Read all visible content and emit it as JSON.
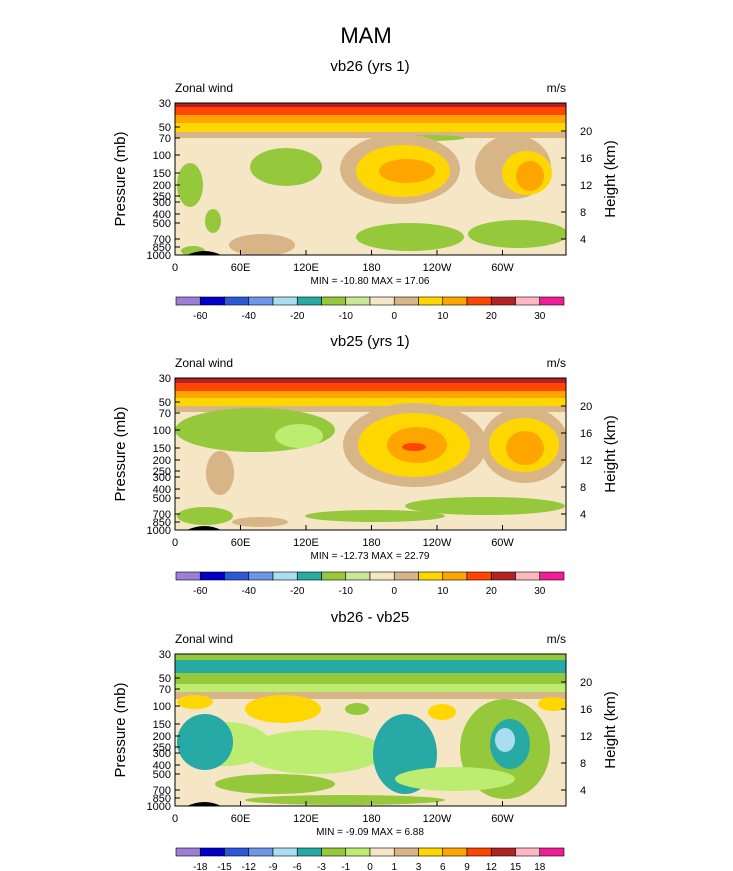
{
  "figure": {
    "title": "MAM"
  },
  "chart_data": [
    {
      "type": "heatmap",
      "title": "vb26 (yrs 1)",
      "variable": "Zonal wind",
      "units": "m/s",
      "xlabel": "",
      "ylabel": "Pressure (mb)",
      "y2label": "Height (km)",
      "x_ticks": [
        "0",
        "60E",
        "120E",
        "180",
        "120W",
        "60W"
      ],
      "y_ticks": [
        "30",
        "50",
        "70",
        "100",
        "150",
        "200",
        "250",
        "300",
        "400",
        "500",
        "700",
        "850",
        "1000"
      ],
      "y2_ticks": [
        "20",
        "16",
        "12",
        "8",
        "4"
      ],
      "stats": "MIN = -10.80  MAX =  17.06",
      "min": -10.8,
      "max": 17.06,
      "colorbar_labels": [
        "-60",
        "-40",
        "-20",
        "-10",
        "0",
        "10",
        "20",
        "30"
      ]
    },
    {
      "type": "heatmap",
      "title": "vb25 (yrs 1)",
      "variable": "Zonal wind",
      "units": "m/s",
      "xlabel": "",
      "ylabel": "Pressure (mb)",
      "y2label": "Height (km)",
      "x_ticks": [
        "0",
        "60E",
        "120E",
        "180",
        "120W",
        "60W"
      ],
      "y_ticks": [
        "30",
        "50",
        "70",
        "100",
        "150",
        "200",
        "250",
        "300",
        "400",
        "500",
        "700",
        "850",
        "1000"
      ],
      "y2_ticks": [
        "20",
        "16",
        "12",
        "8",
        "4"
      ],
      "stats": "MIN = -12.73  MAX =  22.79",
      "min": -12.73,
      "max": 22.79,
      "colorbar_labels": [
        "-60",
        "-40",
        "-20",
        "-10",
        "0",
        "10",
        "20",
        "30"
      ]
    },
    {
      "type": "heatmap",
      "title": "vb26 - vb25",
      "variable": "Zonal wind",
      "units": "m/s",
      "xlabel": "",
      "ylabel": "Pressure (mb)",
      "y2label": "Height (km)",
      "x_ticks": [
        "0",
        "60E",
        "120E",
        "180",
        "120W",
        "60W"
      ],
      "y_ticks": [
        "30",
        "50",
        "70",
        "100",
        "150",
        "200",
        "250",
        "300",
        "400",
        "500",
        "700",
        "850",
        "1000"
      ],
      "y2_ticks": [
        "20",
        "16",
        "12",
        "8",
        "4"
      ],
      "stats": "MIN = -9.09  MAX =  6.88",
      "min": -9.09,
      "max": 6.88,
      "colorbar_labels": [
        "-18",
        "-15",
        "-12",
        "-9",
        "-6",
        "-3",
        "-1",
        "0",
        "1",
        "3",
        "6",
        "9",
        "12",
        "15",
        "18"
      ]
    }
  ]
}
